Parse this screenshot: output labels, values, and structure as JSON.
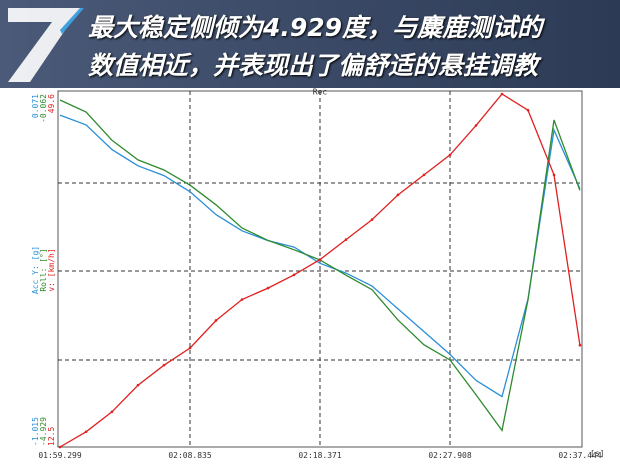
{
  "header": {
    "lines": [
      "最大稳定侧倾为4.929度，与麋鹿测试的",
      "数值相近，并表现出了偏舒适的悬挂调教"
    ]
  },
  "chart_data": {
    "type": "line",
    "plot_label": "Rec",
    "xlabel": "[s]",
    "x": [
      119.3,
      121.21,
      123.11,
      125.02,
      126.93,
      128.84,
      130.74,
      132.65,
      134.56,
      136.47,
      138.37,
      140.28,
      142.19,
      144.09,
      146.0,
      147.91,
      149.82,
      151.72,
      153.63,
      155.54,
      157.44
    ],
    "xlim": [
      119.299,
      157.444
    ],
    "xticks": [
      {
        "value": 119.299,
        "label": "01:59.299"
      },
      {
        "value": 128.835,
        "label": "02:08.835"
      },
      {
        "value": 138.371,
        "label": "02:18.371"
      },
      {
        "value": 147.908,
        "label": "02:27.908"
      },
      {
        "value": 157.444,
        "label": "02:37.444"
      }
    ],
    "series": [
      {
        "name": "Acc Y: [g]",
        "color": "#2b8fd8",
        "ylim": [
          -1.015,
          0.071
        ],
        "values": [
          0.006,
          -0.024,
          -0.1,
          -0.15,
          -0.18,
          -0.23,
          -0.3,
          -0.35,
          -0.38,
          -0.4,
          -0.45,
          -0.48,
          -0.52,
          -0.59,
          -0.66,
          -0.73,
          -0.81,
          -0.86,
          -0.56,
          -0.04,
          -0.22
        ]
      },
      {
        "name": "Roll: [°]",
        "color": "#2e8b2e",
        "ylim": [
          -4.929,
          -0.062
        ],
        "values": [
          -0.145,
          -0.31,
          -0.7,
          -0.97,
          -1.11,
          -1.32,
          -1.59,
          -1.91,
          -2.08,
          -2.21,
          -2.35,
          -2.56,
          -2.76,
          -3.18,
          -3.52,
          -3.73,
          -4.21,
          -4.7,
          -2.9,
          -0.42,
          -1.39
        ]
      },
      {
        "name": "v: [km/h]",
        "color": "#e02020",
        "ylim": [
          12.5,
          49.6
        ],
        "values": [
          12.5,
          14.1,
          16.2,
          19.0,
          21.1,
          22.9,
          25.8,
          28.0,
          29.2,
          30.6,
          32.2,
          34.3,
          36.4,
          39.0,
          41.1,
          43.2,
          46.3,
          49.6,
          47.9,
          41.1,
          23.2
        ]
      }
    ]
  }
}
